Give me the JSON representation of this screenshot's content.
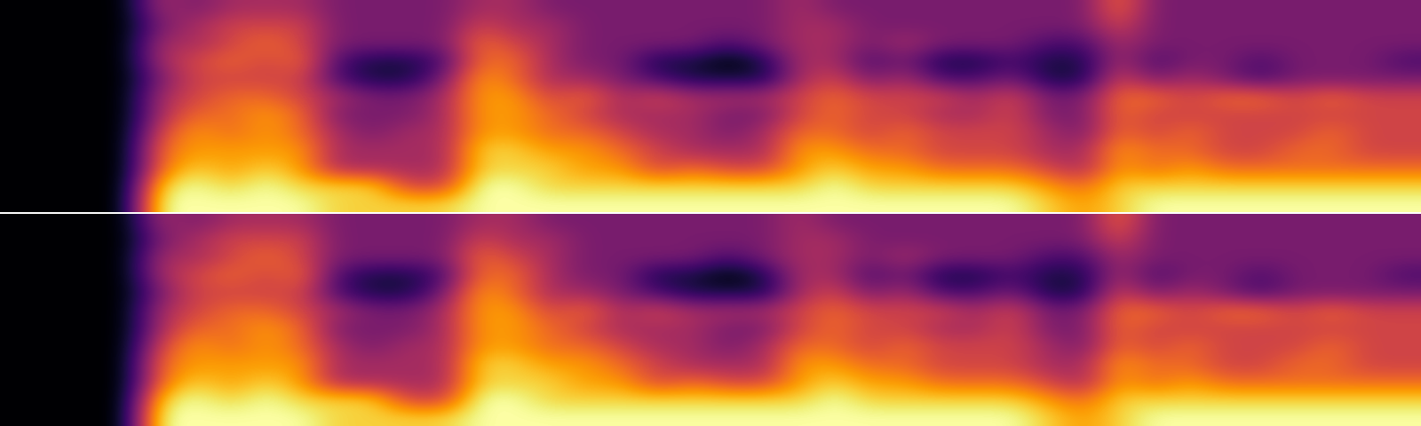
{
  "chart_data": [
    {
      "type": "heatmap",
      "color": "inferno",
      "tick_labels": false,
      "color_range": [
        0,
        9
      ],
      "cells": [
        [
          0,
          0,
          0,
          0,
          0,
          0,
          0,
          0,
          0,
          0,
          0,
          0
        ],
        [
          0,
          0,
          0,
          0,
          0,
          0,
          0,
          0,
          0,
          0,
          0,
          0
        ],
        [
          0,
          0,
          0,
          0,
          0,
          0,
          0,
          0,
          0,
          0,
          0,
          0
        ],
        [
          0,
          0,
          0,
          0,
          0,
          0,
          0,
          0,
          0,
          0,
          0,
          0
        ],
        [
          4,
          3,
          4,
          4,
          3,
          4,
          4,
          5,
          6,
          6,
          8,
          9
        ],
        [
          3,
          4,
          4,
          5,
          5,
          5,
          6,
          7,
          7,
          8,
          9,
          9
        ],
        [
          4,
          5,
          5,
          6,
          5,
          6,
          6,
          6,
          7,
          7,
          8,
          9
        ],
        [
          4,
          5,
          6,
          5,
          5,
          6,
          7,
          7,
          7,
          8,
          9,
          9
        ],
        [
          4,
          5,
          5,
          6,
          5,
          5,
          6,
          6,
          7,
          7,
          8,
          9
        ],
        [
          3,
          3,
          3,
          2,
          2,
          4,
          3,
          4,
          4,
          4,
          8,
          8
        ],
        [
          3,
          3,
          3,
          1,
          1,
          3,
          3,
          3,
          4,
          4,
          8,
          8
        ],
        [
          3,
          3,
          3,
          1,
          1,
          3,
          3,
          4,
          4,
          4,
          5,
          8
        ],
        [
          3,
          3,
          3,
          2,
          3,
          4,
          4,
          4,
          4,
          4,
          5,
          8
        ],
        [
          4,
          5,
          6,
          6,
          7,
          7,
          7,
          7,
          8,
          8,
          9,
          9
        ],
        [
          4,
          4,
          5,
          6,
          6,
          7,
          7,
          7,
          8,
          8,
          9,
          9
        ],
        [
          3,
          4,
          4,
          4,
          4,
          5,
          6,
          6,
          7,
          8,
          8,
          9
        ],
        [
          3,
          3,
          3,
          3,
          4,
          6,
          5,
          6,
          7,
          7,
          8,
          9
        ],
        [
          3,
          3,
          3,
          3,
          3,
          4,
          4,
          5,
          6,
          7,
          8,
          9
        ],
        [
          3,
          3,
          3,
          1,
          2,
          5,
          4,
          4,
          5,
          5,
          8,
          9
        ],
        [
          3,
          3,
          3,
          1,
          1,
          4,
          4,
          4,
          4,
          6,
          8,
          9
        ],
        [
          3,
          3,
          2,
          0,
          1,
          4,
          3,
          3,
          4,
          5,
          8,
          9
        ],
        [
          3,
          3,
          3,
          1,
          1,
          4,
          3,
          4,
          4,
          5,
          8,
          9
        ],
        [
          4,
          4,
          4,
          4,
          4,
          5,
          5,
          6,
          7,
          7,
          8,
          9
        ],
        [
          3,
          4,
          4,
          4,
          5,
          6,
          6,
          6,
          7,
          8,
          9,
          9
        ],
        [
          3,
          3,
          3,
          2,
          3,
          5,
          5,
          5,
          6,
          7,
          8,
          9
        ],
        [
          3,
          3,
          4,
          3,
          4,
          5,
          5,
          6,
          6,
          7,
          8,
          9
        ],
        [
          3,
          3,
          3,
          1,
          2,
          5,
          4,
          5,
          5,
          6,
          8,
          9
        ],
        [
          3,
          3,
          3,
          1,
          2,
          4,
          4,
          5,
          5,
          6,
          8,
          9
        ],
        [
          3,
          3,
          3,
          2,
          3,
          5,
          5,
          5,
          5,
          6,
          8,
          9
        ],
        [
          3,
          3,
          2,
          1,
          1,
          3,
          3,
          4,
          4,
          5,
          7,
          8
        ],
        [
          3,
          3,
          2,
          1,
          1,
          3,
          3,
          3,
          4,
          4,
          6,
          7
        ],
        [
          6,
          5,
          4,
          4,
          5,
          6,
          6,
          6,
          7,
          7,
          8,
          8
        ],
        [
          3,
          3,
          3,
          2,
          3,
          6,
          5,
          5,
          6,
          6,
          8,
          9
        ],
        [
          3,
          3,
          3,
          3,
          4,
          5,
          5,
          6,
          6,
          7,
          8,
          9
        ],
        [
          3,
          3,
          3,
          3,
          3,
          6,
          5,
          5,
          5,
          6,
          8,
          9
        ],
        [
          3,
          3,
          3,
          2,
          2,
          6,
          5,
          5,
          5,
          6,
          8,
          9
        ],
        [
          3,
          3,
          3,
          3,
          3,
          5,
          5,
          5,
          6,
          6,
          8,
          9
        ],
        [
          3,
          3,
          3,
          3,
          3,
          6,
          5,
          6,
          6,
          6,
          8,
          9
        ],
        [
          3,
          3,
          3,
          3,
          3,
          5,
          5,
          5,
          5,
          6,
          8,
          9
        ],
        [
          3,
          3,
          3,
          2,
          3,
          5,
          5,
          5,
          5,
          6,
          8,
          9
        ]
      ]
    },
    {
      "type": "heatmap",
      "color": "inferno",
      "tick_labels": false,
      "color_range": [
        0,
        9
      ],
      "cells": [
        [
          0,
          0,
          0,
          0,
          0,
          0,
          0,
          0,
          0,
          0,
          0,
          0
        ],
        [
          0,
          0,
          0,
          0,
          0,
          0,
          0,
          0,
          0,
          0,
          0,
          0
        ],
        [
          0,
          0,
          0,
          0,
          0,
          0,
          0,
          0,
          0,
          0,
          0,
          0
        ],
        [
          0,
          0,
          0,
          0,
          0,
          0,
          0,
          0,
          0,
          0,
          0,
          0
        ],
        [
          4,
          3,
          4,
          4,
          3,
          4,
          4,
          5,
          6,
          6,
          8,
          9
        ],
        [
          3,
          4,
          4,
          5,
          5,
          5,
          6,
          7,
          7,
          8,
          9,
          9
        ],
        [
          4,
          5,
          5,
          6,
          5,
          6,
          6,
          6,
          7,
          7,
          8,
          9
        ],
        [
          4,
          5,
          6,
          5,
          5,
          6,
          7,
          7,
          7,
          8,
          9,
          9
        ],
        [
          4,
          5,
          5,
          6,
          5,
          5,
          6,
          6,
          7,
          7,
          8,
          9
        ],
        [
          3,
          3,
          3,
          2,
          2,
          4,
          3,
          4,
          4,
          4,
          8,
          8
        ],
        [
          3,
          3,
          3,
          1,
          1,
          3,
          3,
          3,
          4,
          4,
          8,
          8
        ],
        [
          3,
          3,
          3,
          1,
          1,
          3,
          3,
          4,
          4,
          4,
          5,
          8
        ],
        [
          3,
          3,
          3,
          2,
          3,
          4,
          4,
          4,
          4,
          4,
          5,
          8
        ],
        [
          4,
          5,
          6,
          6,
          7,
          7,
          7,
          7,
          8,
          8,
          9,
          9
        ],
        [
          4,
          4,
          5,
          6,
          6,
          7,
          7,
          7,
          8,
          8,
          9,
          9
        ],
        [
          3,
          4,
          4,
          4,
          4,
          5,
          6,
          6,
          7,
          8,
          8,
          9
        ],
        [
          3,
          3,
          3,
          3,
          4,
          6,
          5,
          6,
          7,
          7,
          8,
          9
        ],
        [
          3,
          3,
          3,
          3,
          3,
          4,
          4,
          5,
          6,
          7,
          8,
          9
        ],
        [
          3,
          3,
          3,
          1,
          2,
          5,
          4,
          4,
          5,
          5,
          8,
          9
        ],
        [
          3,
          3,
          3,
          1,
          1,
          4,
          4,
          4,
          4,
          6,
          8,
          9
        ],
        [
          3,
          3,
          2,
          0,
          1,
          4,
          3,
          3,
          4,
          5,
          8,
          9
        ],
        [
          3,
          3,
          3,
          1,
          1,
          4,
          3,
          4,
          4,
          5,
          8,
          9
        ],
        [
          4,
          4,
          4,
          4,
          4,
          5,
          5,
          6,
          7,
          7,
          8,
          9
        ],
        [
          3,
          4,
          4,
          4,
          5,
          6,
          6,
          6,
          7,
          8,
          9,
          9
        ],
        [
          3,
          3,
          3,
          2,
          3,
          5,
          5,
          5,
          6,
          7,
          8,
          9
        ],
        [
          3,
          3,
          4,
          3,
          4,
          5,
          5,
          6,
          6,
          7,
          8,
          9
        ],
        [
          3,
          3,
          3,
          1,
          2,
          5,
          4,
          5,
          5,
          6,
          8,
          9
        ],
        [
          3,
          3,
          3,
          1,
          2,
          4,
          4,
          5,
          5,
          6,
          8,
          9
        ],
        [
          3,
          3,
          3,
          2,
          3,
          5,
          5,
          5,
          5,
          6,
          8,
          9
        ],
        [
          3,
          3,
          2,
          1,
          1,
          3,
          3,
          4,
          4,
          5,
          7,
          8
        ],
        [
          3,
          3,
          2,
          1,
          1,
          3,
          3,
          3,
          4,
          4,
          6,
          7
        ],
        [
          6,
          5,
          4,
          4,
          5,
          6,
          6,
          6,
          7,
          7,
          8,
          8
        ],
        [
          3,
          3,
          3,
          2,
          3,
          6,
          5,
          5,
          6,
          6,
          8,
          9
        ],
        [
          3,
          3,
          3,
          3,
          4,
          5,
          5,
          6,
          6,
          7,
          8,
          9
        ],
        [
          3,
          3,
          3,
          3,
          3,
          6,
          5,
          5,
          5,
          6,
          8,
          9
        ],
        [
          3,
          3,
          3,
          2,
          2,
          6,
          5,
          5,
          5,
          6,
          8,
          9
        ],
        [
          3,
          3,
          3,
          3,
          3,
          5,
          5,
          5,
          6,
          6,
          8,
          9
        ],
        [
          3,
          3,
          3,
          3,
          3,
          6,
          5,
          6,
          6,
          6,
          8,
          9
        ],
        [
          3,
          3,
          3,
          3,
          3,
          5,
          5,
          5,
          5,
          6,
          8,
          9
        ],
        [
          3,
          3,
          3,
          2,
          3,
          5,
          5,
          5,
          5,
          6,
          8,
          9
        ]
      ]
    }
  ]
}
